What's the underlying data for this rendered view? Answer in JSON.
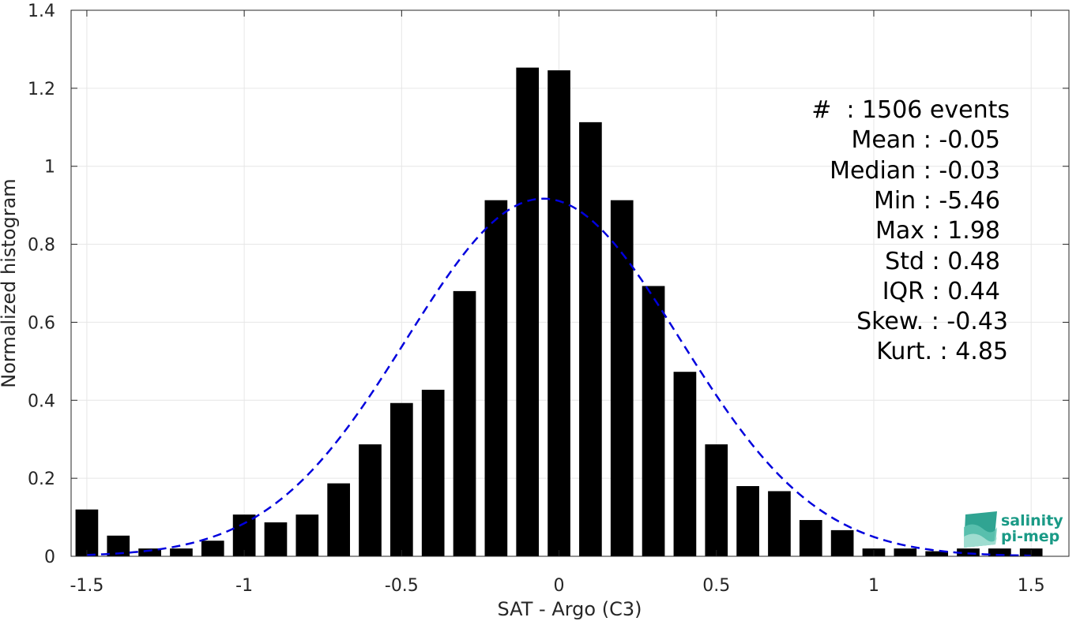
{
  "chart_data": {
    "type": "bar",
    "xlabel": "SAT - Argo (C3)",
    "ylabel": "Normalized histogram",
    "xlim": [
      -1.55,
      1.62
    ],
    "ylim": [
      0,
      1.4
    ],
    "grid": true,
    "x_ticks": [
      -1.5,
      -1,
      -0.5,
      0,
      0.5,
      1,
      1.5
    ],
    "x_tick_labels": [
      "-1.5",
      "-1",
      "-0.5",
      "0",
      "0.5",
      "1",
      "1.5"
    ],
    "y_ticks": [
      0,
      0.2,
      0.4,
      0.6,
      0.8,
      1,
      1.2,
      1.4
    ],
    "y_tick_labels": [
      "0",
      "0.2",
      "0.4",
      "0.6",
      "0.8",
      "1",
      "1.2",
      "1.4"
    ],
    "bar_color": "#000000",
    "curve_color": "#0000dd",
    "bin_width": 0.1,
    "bins": {
      "x": [
        -1.5,
        -1.4,
        -1.3,
        -1.2,
        -1.1,
        -1.0,
        -0.9,
        -0.8,
        -0.7,
        -0.6,
        -0.5,
        -0.4,
        -0.3,
        -0.2,
        -0.1,
        0.0,
        0.1,
        0.2,
        0.3,
        0.4,
        0.5,
        0.6,
        0.7,
        0.8,
        0.9,
        1.0,
        1.1,
        1.2,
        1.3,
        1.4,
        1.5
      ],
      "values": [
        0.12,
        0.053,
        0.02,
        0.02,
        0.04,
        0.107,
        0.087,
        0.107,
        0.187,
        0.287,
        0.393,
        0.427,
        0.68,
        0.913,
        1.253,
        1.246,
        1.113,
        0.913,
        0.693,
        0.473,
        0.287,
        0.18,
        0.167,
        0.093,
        0.067,
        0.02,
        0.02,
        0.013,
        0.02,
        0.02,
        0.02
      ]
    },
    "fit_curve": {
      "style": "dashed",
      "mean": -0.05,
      "std": 0.435,
      "peak": 0.917
    },
    "annotation": [
      "#  : 1506 events",
      "Mean : -0.05",
      "Median : -0.03",
      "Min : -5.46",
      "Max : 1.98",
      "Std : 0.48",
      "IQR : 0.44",
      "Skew. : -0.43",
      "Kurt. : 4.85"
    ]
  },
  "logo": {
    "line1": "salinity",
    "line2": "pi-mep",
    "icon": "wave-logo-icon",
    "color": "#1a9a86"
  }
}
